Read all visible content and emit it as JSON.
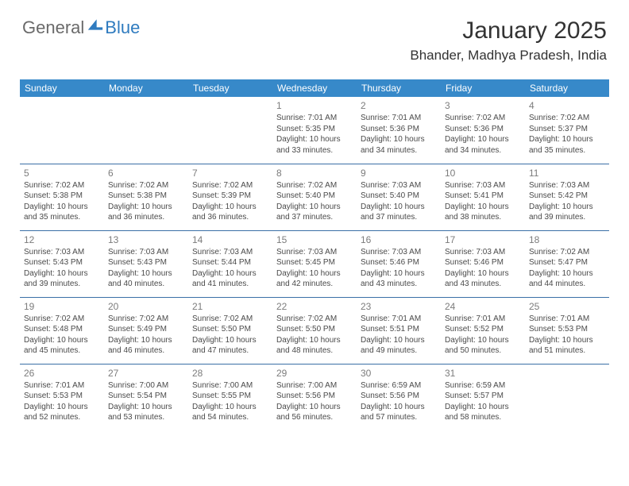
{
  "brand": {
    "part1": "General",
    "part2": "Blue"
  },
  "title": "January 2025",
  "location": "Bhander, Madhya Pradesh, India",
  "colors": {
    "header_bg": "#3789c9",
    "header_text": "#ffffff",
    "cell_border": "#3a6fa6",
    "daynum": "#7c7c7c",
    "info_text": "#4a4a4a",
    "brand_gray": "#6a6a6a",
    "brand_blue": "#2f7bbf"
  },
  "day_headers": [
    "Sunday",
    "Monday",
    "Tuesday",
    "Wednesday",
    "Thursday",
    "Friday",
    "Saturday"
  ],
  "weeks": [
    [
      null,
      null,
      null,
      {
        "n": "1",
        "sr": "7:01 AM",
        "ss": "5:35 PM",
        "dh": "10",
        "dm": "33"
      },
      {
        "n": "2",
        "sr": "7:01 AM",
        "ss": "5:36 PM",
        "dh": "10",
        "dm": "34"
      },
      {
        "n": "3",
        "sr": "7:02 AM",
        "ss": "5:36 PM",
        "dh": "10",
        "dm": "34"
      },
      {
        "n": "4",
        "sr": "7:02 AM",
        "ss": "5:37 PM",
        "dh": "10",
        "dm": "35"
      }
    ],
    [
      {
        "n": "5",
        "sr": "7:02 AM",
        "ss": "5:38 PM",
        "dh": "10",
        "dm": "35"
      },
      {
        "n": "6",
        "sr": "7:02 AM",
        "ss": "5:38 PM",
        "dh": "10",
        "dm": "36"
      },
      {
        "n": "7",
        "sr": "7:02 AM",
        "ss": "5:39 PM",
        "dh": "10",
        "dm": "36"
      },
      {
        "n": "8",
        "sr": "7:02 AM",
        "ss": "5:40 PM",
        "dh": "10",
        "dm": "37"
      },
      {
        "n": "9",
        "sr": "7:03 AM",
        "ss": "5:40 PM",
        "dh": "10",
        "dm": "37"
      },
      {
        "n": "10",
        "sr": "7:03 AM",
        "ss": "5:41 PM",
        "dh": "10",
        "dm": "38"
      },
      {
        "n": "11",
        "sr": "7:03 AM",
        "ss": "5:42 PM",
        "dh": "10",
        "dm": "39"
      }
    ],
    [
      {
        "n": "12",
        "sr": "7:03 AM",
        "ss": "5:43 PM",
        "dh": "10",
        "dm": "39"
      },
      {
        "n": "13",
        "sr": "7:03 AM",
        "ss": "5:43 PM",
        "dh": "10",
        "dm": "40"
      },
      {
        "n": "14",
        "sr": "7:03 AM",
        "ss": "5:44 PM",
        "dh": "10",
        "dm": "41"
      },
      {
        "n": "15",
        "sr": "7:03 AM",
        "ss": "5:45 PM",
        "dh": "10",
        "dm": "42"
      },
      {
        "n": "16",
        "sr": "7:03 AM",
        "ss": "5:46 PM",
        "dh": "10",
        "dm": "43"
      },
      {
        "n": "17",
        "sr": "7:03 AM",
        "ss": "5:46 PM",
        "dh": "10",
        "dm": "43"
      },
      {
        "n": "18",
        "sr": "7:02 AM",
        "ss": "5:47 PM",
        "dh": "10",
        "dm": "44"
      }
    ],
    [
      {
        "n": "19",
        "sr": "7:02 AM",
        "ss": "5:48 PM",
        "dh": "10",
        "dm": "45"
      },
      {
        "n": "20",
        "sr": "7:02 AM",
        "ss": "5:49 PM",
        "dh": "10",
        "dm": "46"
      },
      {
        "n": "21",
        "sr": "7:02 AM",
        "ss": "5:50 PM",
        "dh": "10",
        "dm": "47"
      },
      {
        "n": "22",
        "sr": "7:02 AM",
        "ss": "5:50 PM",
        "dh": "10",
        "dm": "48"
      },
      {
        "n": "23",
        "sr": "7:01 AM",
        "ss": "5:51 PM",
        "dh": "10",
        "dm": "49"
      },
      {
        "n": "24",
        "sr": "7:01 AM",
        "ss": "5:52 PM",
        "dh": "10",
        "dm": "50"
      },
      {
        "n": "25",
        "sr": "7:01 AM",
        "ss": "5:53 PM",
        "dh": "10",
        "dm": "51"
      }
    ],
    [
      {
        "n": "26",
        "sr": "7:01 AM",
        "ss": "5:53 PM",
        "dh": "10",
        "dm": "52"
      },
      {
        "n": "27",
        "sr": "7:00 AM",
        "ss": "5:54 PM",
        "dh": "10",
        "dm": "53"
      },
      {
        "n": "28",
        "sr": "7:00 AM",
        "ss": "5:55 PM",
        "dh": "10",
        "dm": "54"
      },
      {
        "n": "29",
        "sr": "7:00 AM",
        "ss": "5:56 PM",
        "dh": "10",
        "dm": "56"
      },
      {
        "n": "30",
        "sr": "6:59 AM",
        "ss": "5:56 PM",
        "dh": "10",
        "dm": "57"
      },
      {
        "n": "31",
        "sr": "6:59 AM",
        "ss": "5:57 PM",
        "dh": "10",
        "dm": "58"
      },
      null
    ]
  ],
  "labels": {
    "sunrise": "Sunrise:",
    "sunset": "Sunset:",
    "daylight": "Daylight:",
    "hours_word": "hours",
    "and_word": "and",
    "minutes_word": "minutes."
  }
}
